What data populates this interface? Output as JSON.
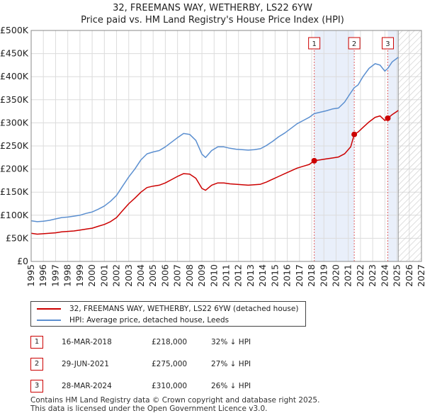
{
  "chart_data": {
    "type": "line",
    "title": "32, FREEMANS WAY, WETHERBY, LS22 6YW",
    "subtitle": "Price paid vs. HM Land Registry's House Price Index (HPI)",
    "xlabel": "",
    "ylabel": "",
    "xlim": [
      1995,
      2027
    ],
    "ylim": [
      0,
      500000
    ],
    "x_ticks": [
      "1995",
      "1996",
      "1997",
      "1998",
      "1999",
      "2000",
      "2001",
      "2002",
      "2003",
      "2004",
      "2005",
      "2006",
      "2007",
      "2008",
      "2009",
      "2010",
      "2011",
      "2012",
      "2013",
      "2014",
      "2015",
      "2016",
      "2017",
      "2018",
      "2019",
      "2020",
      "2021",
      "2022",
      "2023",
      "2024",
      "2025",
      "2026",
      "2027"
    ],
    "y_ticks": [
      {
        "value": 0,
        "label": "£0"
      },
      {
        "value": 50000,
        "label": "£50K"
      },
      {
        "value": 100000,
        "label": "£100K"
      },
      {
        "value": 150000,
        "label": "£150K"
      },
      {
        "value": 200000,
        "label": "£200K"
      },
      {
        "value": 250000,
        "label": "£250K"
      },
      {
        "value": 300000,
        "label": "£300K"
      },
      {
        "value": 350000,
        "label": "£350K"
      },
      {
        "value": 400000,
        "label": "£400K"
      },
      {
        "value": 450000,
        "label": "£450K"
      },
      {
        "value": 500000,
        "label": "£500K"
      }
    ],
    "grid": true,
    "forecast_start": 2025.1,
    "shaded_ranges": [
      [
        2018.21,
        2021.49
      ],
      [
        2024.24,
        2025.1
      ]
    ],
    "series": [
      {
        "name": "32, FREEMANS WAY, WETHERBY, LS22 6YW (detached house)",
        "color": "#cc0000",
        "points": [
          [
            1995.0,
            61000
          ],
          [
            1995.5,
            59000
          ],
          [
            1996.0,
            60000
          ],
          [
            1996.5,
            61000
          ],
          [
            1997.0,
            62000
          ],
          [
            1997.5,
            64000
          ],
          [
            1998.0,
            65000
          ],
          [
            1998.5,
            66000
          ],
          [
            1999.0,
            68000
          ],
          [
            1999.5,
            70000
          ],
          [
            2000.0,
            72000
          ],
          [
            2000.5,
            76000
          ],
          [
            2001.0,
            80000
          ],
          [
            2001.5,
            86000
          ],
          [
            2002.0,
            95000
          ],
          [
            2002.5,
            110000
          ],
          [
            2003.0,
            125000
          ],
          [
            2003.5,
            137000
          ],
          [
            2004.0,
            150000
          ],
          [
            2004.5,
            160000
          ],
          [
            2005.0,
            163000
          ],
          [
            2005.5,
            165000
          ],
          [
            2006.0,
            170000
          ],
          [
            2006.5,
            177000
          ],
          [
            2007.0,
            184000
          ],
          [
            2007.5,
            190000
          ],
          [
            2008.0,
            189000
          ],
          [
            2008.5,
            180000
          ],
          [
            2009.0,
            158000
          ],
          [
            2009.3,
            154000
          ],
          [
            2009.8,
            165000
          ],
          [
            2010.3,
            170000
          ],
          [
            2010.8,
            170000
          ],
          [
            2011.3,
            168000
          ],
          [
            2011.8,
            167000
          ],
          [
            2012.3,
            166000
          ],
          [
            2012.8,
            165000
          ],
          [
            2013.3,
            166000
          ],
          [
            2013.8,
            167000
          ],
          [
            2014.3,
            172000
          ],
          [
            2014.8,
            178000
          ],
          [
            2015.3,
            184000
          ],
          [
            2015.8,
            190000
          ],
          [
            2016.3,
            196000
          ],
          [
            2016.8,
            202000
          ],
          [
            2017.3,
            206000
          ],
          [
            2017.8,
            210000
          ],
          [
            2018.21,
            218000
          ],
          [
            2018.7,
            220000
          ],
          [
            2019.2,
            222000
          ],
          [
            2019.7,
            224000
          ],
          [
            2020.2,
            226000
          ],
          [
            2020.7,
            233000
          ],
          [
            2021.2,
            248000
          ],
          [
            2021.49,
            275000
          ],
          [
            2021.8,
            280000
          ],
          [
            2022.2,
            290000
          ],
          [
            2022.7,
            302000
          ],
          [
            2023.2,
            312000
          ],
          [
            2023.6,
            315000
          ],
          [
            2024.0,
            305000
          ],
          [
            2024.24,
            310000
          ],
          [
            2024.6,
            318000
          ],
          [
            2025.0,
            325000
          ],
          [
            2025.1,
            327000
          ]
        ]
      },
      {
        "name": "HPI: Average price, detached house, Leeds",
        "color": "#5b8fd0",
        "points": [
          [
            1995.0,
            88000
          ],
          [
            1995.5,
            86000
          ],
          [
            1996.0,
            87000
          ],
          [
            1996.5,
            89000
          ],
          [
            1997.0,
            92000
          ],
          [
            1997.5,
            95000
          ],
          [
            1998.0,
            96000
          ],
          [
            1998.5,
            98000
          ],
          [
            1999.0,
            100000
          ],
          [
            1999.5,
            104000
          ],
          [
            2000.0,
            107000
          ],
          [
            2000.5,
            113000
          ],
          [
            2001.0,
            120000
          ],
          [
            2001.5,
            130000
          ],
          [
            2002.0,
            143000
          ],
          [
            2002.5,
            163000
          ],
          [
            2003.0,
            183000
          ],
          [
            2003.5,
            200000
          ],
          [
            2004.0,
            220000
          ],
          [
            2004.5,
            233000
          ],
          [
            2005.0,
            237000
          ],
          [
            2005.5,
            240000
          ],
          [
            2006.0,
            248000
          ],
          [
            2006.5,
            258000
          ],
          [
            2007.0,
            268000
          ],
          [
            2007.5,
            277000
          ],
          [
            2008.0,
            275000
          ],
          [
            2008.5,
            262000
          ],
          [
            2009.0,
            232000
          ],
          [
            2009.3,
            225000
          ],
          [
            2009.8,
            240000
          ],
          [
            2010.3,
            248000
          ],
          [
            2010.8,
            248000
          ],
          [
            2011.3,
            245000
          ],
          [
            2011.8,
            243000
          ],
          [
            2012.3,
            242000
          ],
          [
            2012.8,
            241000
          ],
          [
            2013.3,
            242000
          ],
          [
            2013.8,
            244000
          ],
          [
            2014.3,
            251000
          ],
          [
            2014.8,
            260000
          ],
          [
            2015.3,
            270000
          ],
          [
            2015.8,
            278000
          ],
          [
            2016.3,
            288000
          ],
          [
            2016.8,
            298000
          ],
          [
            2017.3,
            305000
          ],
          [
            2017.8,
            312000
          ],
          [
            2018.21,
            320000
          ],
          [
            2018.7,
            323000
          ],
          [
            2019.2,
            326000
          ],
          [
            2019.7,
            330000
          ],
          [
            2020.2,
            332000
          ],
          [
            2020.7,
            345000
          ],
          [
            2021.2,
            365000
          ],
          [
            2021.49,
            376000
          ],
          [
            2021.8,
            382000
          ],
          [
            2022.2,
            400000
          ],
          [
            2022.7,
            418000
          ],
          [
            2023.2,
            428000
          ],
          [
            2023.6,
            425000
          ],
          [
            2024.0,
            412000
          ],
          [
            2024.24,
            418000
          ],
          [
            2024.6,
            432000
          ],
          [
            2025.0,
            440000
          ],
          [
            2025.1,
            442000
          ]
        ]
      }
    ],
    "markers": [
      {
        "label": "1",
        "x": 2018.21,
        "y": 218000
      },
      {
        "label": "2",
        "x": 2021.49,
        "y": 275000
      },
      {
        "label": "3",
        "x": 2024.24,
        "y": 310000
      }
    ]
  },
  "legend": {
    "items": [
      {
        "label": "32, FREEMANS WAY, WETHERBY, LS22 6YW (detached house)",
        "color": "#cc0000"
      },
      {
        "label": "HPI: Average price, detached house, Leeds",
        "color": "#5b8fd0"
      }
    ]
  },
  "transactions": [
    {
      "num": "1",
      "date": "16-MAR-2018",
      "price": "£218,000",
      "hpi": "32% ↓ HPI"
    },
    {
      "num": "2",
      "date": "29-JUN-2021",
      "price": "£275,000",
      "hpi": "27% ↓ HPI"
    },
    {
      "num": "3",
      "date": "28-MAR-2024",
      "price": "£310,000",
      "hpi": "26% ↓ HPI"
    }
  ],
  "footer": {
    "line1": "Contains HM Land Registry data © Crown copyright and database right 2025.",
    "line2": "This data is licensed under the Open Government Licence v3.0."
  }
}
